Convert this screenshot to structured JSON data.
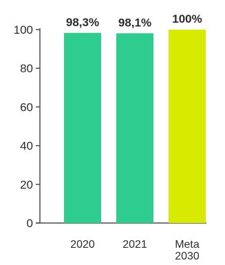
{
  "chart_data": {
    "type": "bar",
    "title": "",
    "xlabel": "",
    "ylabel": "",
    "categories": [
      {
        "lines": [
          "2020"
        ]
      },
      {
        "lines": [
          "2021"
        ]
      },
      {
        "lines": [
          "Meta",
          "2030"
        ]
      }
    ],
    "values": [
      98.3,
      98.1,
      100
    ],
    "data_labels": [
      "98,3%",
      "98,1%",
      "100%"
    ],
    "bar_colors": [
      "#2ecc8f",
      "#2ecc8f",
      "#d8ea00"
    ],
    "ylim": [
      0,
      100
    ],
    "yticks": [
      0,
      20,
      40,
      60,
      80,
      100
    ],
    "ytick_labels": [
      "0",
      "20",
      "40",
      "60",
      "80",
      "100"
    ],
    "grid": false,
    "legend": "none",
    "axis_color": "#4a4a4a"
  }
}
